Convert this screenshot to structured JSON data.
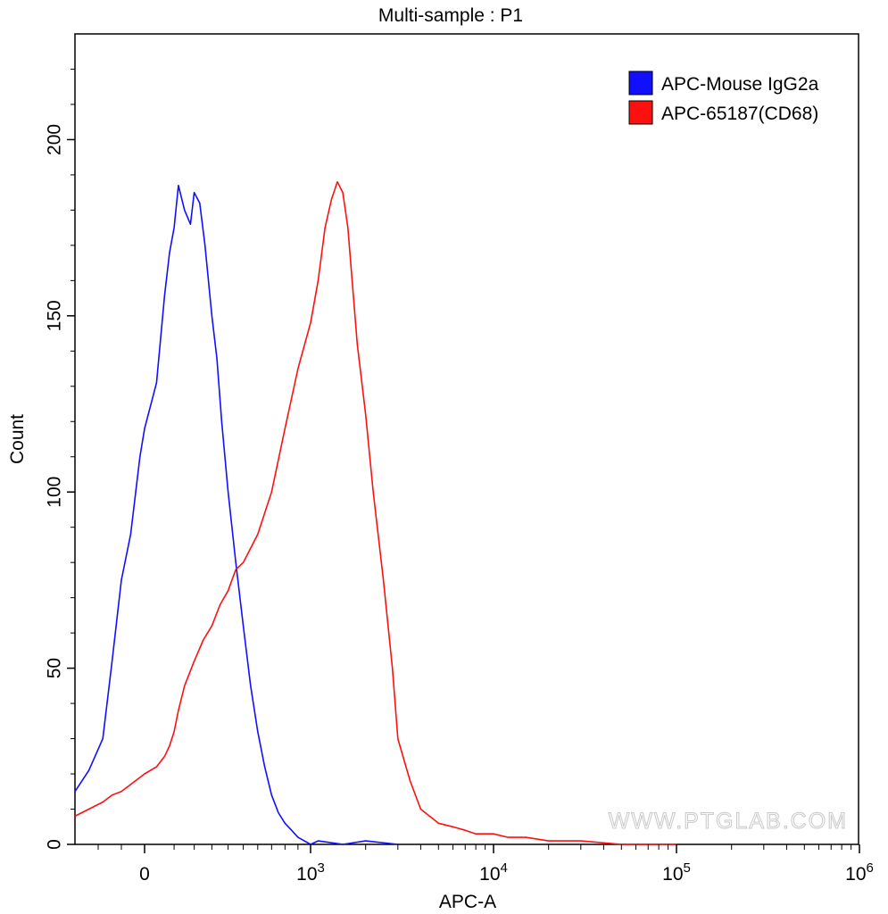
{
  "chart_data": {
    "type": "line",
    "title": "Multi-sample : P1",
    "xlabel": "APC-A",
    "ylabel": "Count",
    "x_scale": "biexponential",
    "xlim": [
      -300,
      1000000
    ],
    "ylim": [
      0,
      230
    ],
    "x_ticks": [
      {
        "value": 0,
        "base": "0",
        "exp": ""
      },
      {
        "value": 1000,
        "base": "10",
        "exp": "3"
      },
      {
        "value": 10000,
        "base": "10",
        "exp": "4"
      },
      {
        "value": 100000,
        "base": "10",
        "exp": "5"
      },
      {
        "value": 1000000,
        "base": "10",
        "exp": "6"
      }
    ],
    "y_ticks": [
      0,
      50,
      100,
      150,
      200
    ],
    "grid": false,
    "legend_position": "top-right",
    "series": [
      {
        "name": "APC-Mouse IgG2a",
        "color": "#1010ff",
        "x": [
          -300,
          -240,
          -180,
          -140,
          -100,
          -60,
          -20,
          0,
          30,
          60,
          80,
          100,
          120,
          150,
          180,
          200,
          230,
          260,
          300,
          330,
          360,
          400,
          450,
          500,
          550,
          600,
          650,
          700,
          750,
          800,
          850,
          900,
          950,
          1000,
          1100,
          1500,
          2000,
          3000
        ],
        "values": [
          15,
          21,
          30,
          52,
          75,
          88,
          110,
          118,
          131,
          156,
          168,
          175,
          187,
          180,
          176,
          185,
          182,
          170,
          150,
          138,
          120,
          100,
          80,
          62,
          45,
          32,
          22,
          14,
          9,
          6,
          4,
          2,
          1,
          0,
          1,
          0,
          1,
          0
        ]
      },
      {
        "name": "APC-65187(CD68)",
        "color": "#ff1010",
        "x": [
          -300,
          -240,
          -180,
          -140,
          -100,
          -60,
          -20,
          0,
          30,
          60,
          80,
          100,
          120,
          150,
          200,
          250,
          300,
          350,
          400,
          450,
          500,
          600,
          700,
          800,
          900,
          1000,
          1100,
          1200,
          1300,
          1400,
          1500,
          1600,
          1700,
          1800,
          2000,
          2200,
          2500,
          2800,
          3000,
          3500,
          4000,
          5000,
          6000,
          7000,
          8000,
          10000,
          12000,
          15000,
          20000,
          30000,
          50000,
          100000
        ],
        "values": [
          8,
          10,
          12,
          14,
          15,
          17,
          19,
          20,
          22,
          25,
          28,
          32,
          38,
          45,
          52,
          58,
          62,
          68,
          72,
          78,
          80,
          88,
          100,
          118,
          135,
          148,
          160,
          175,
          183,
          188,
          185,
          175,
          158,
          142,
          122,
          100,
          75,
          50,
          30,
          18,
          10,
          6,
          5,
          4,
          3,
          3,
          2,
          2,
          1,
          1,
          0,
          0
        ]
      }
    ]
  },
  "watermark": "WWW.PTGLAB.COM"
}
